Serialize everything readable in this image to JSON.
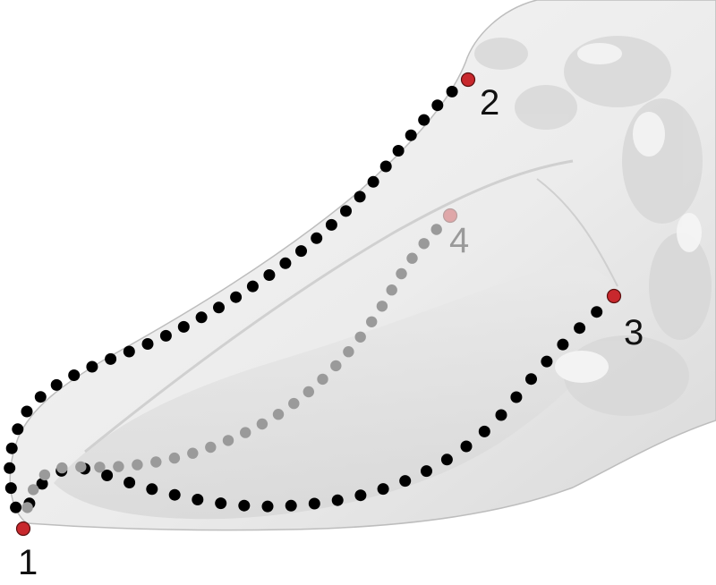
{
  "figure": {
    "description_free": true,
    "landmarks": [
      {
        "label": "1",
        "color": "#c8282d",
        "label_color": "#111111"
      },
      {
        "label": "2",
        "color": "#c8282d",
        "label_color": "#111111"
      },
      {
        "label": "3",
        "color": "#c8282d",
        "label_color": "#111111"
      },
      {
        "label": "4",
        "color": "#c8282d",
        "label_color": "#9a9a9a"
      }
    ],
    "curves": [
      {
        "name": "curve-1-to-2",
        "color": "#000000"
      },
      {
        "name": "curve-1-to-3",
        "color": "#000000"
      },
      {
        "name": "curve-1-to-4",
        "color": "#9a9a9a"
      }
    ],
    "colors": {
      "background": "#ffffff",
      "surface": "#ececec",
      "surface_shadow": "#c9c9c9"
    }
  }
}
